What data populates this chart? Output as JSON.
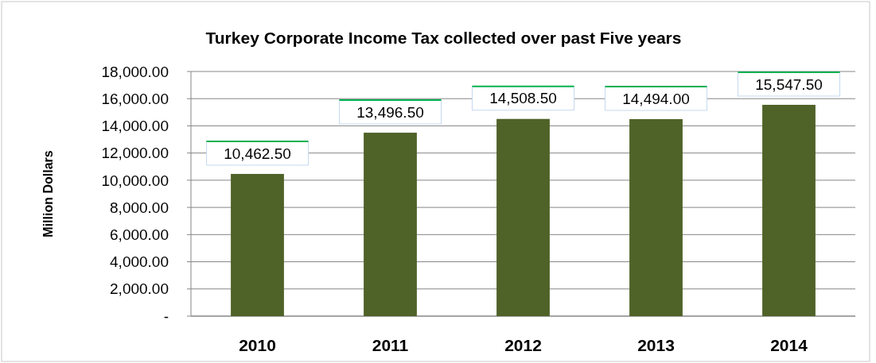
{
  "chart_data": {
    "type": "bar",
    "title": "Turkey Corporate Income Tax collected over past Five years",
    "ylabel": "Million Dollars",
    "categories": [
      "2010",
      "2011",
      "2012",
      "2013",
      "2014"
    ],
    "values": [
      10462.5,
      13496.5,
      14508.5,
      14494,
      15547.5
    ],
    "value_labels": [
      "10,462.50",
      "13,496.50",
      "14,508.50",
      "14,494.00",
      "15,547.50"
    ],
    "color": "#4f6228",
    "ylim": [
      0,
      18000
    ],
    "yticks": [
      {
        "value": 0,
        "label": "-"
      },
      {
        "value": 2000,
        "label": "2,000.00"
      },
      {
        "value": 4000,
        "label": "4,000.00"
      },
      {
        "value": 6000,
        "label": "6,000.00"
      },
      {
        "value": 8000,
        "label": "8,000.00"
      },
      {
        "value": 10000,
        "label": "10,000.00"
      },
      {
        "value": 12000,
        "label": "12,000.00"
      },
      {
        "value": 14000,
        "label": "14,000.00"
      },
      {
        "value": 16000,
        "label": "16,000.00"
      },
      {
        "value": 18000,
        "label": "18,000.00"
      }
    ],
    "grid": "y"
  }
}
